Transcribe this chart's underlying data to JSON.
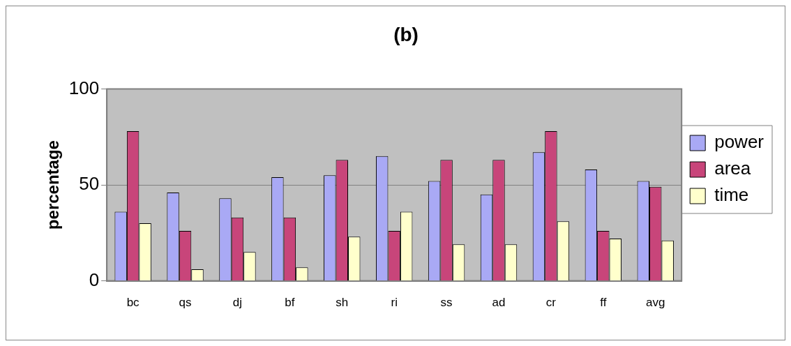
{
  "chart_data": {
    "type": "bar",
    "title": "(b)",
    "ylabel": "percentage",
    "categories": [
      "bc",
      "qs",
      "dj",
      "bf",
      "sh",
      "ri",
      "ss",
      "ad",
      "cr",
      "ff",
      "avg"
    ],
    "series": [
      {
        "name": "power",
        "color": "#a9a9f5",
        "values": [
          36,
          46,
          43,
          54,
          55,
          65,
          52,
          45,
          67,
          58,
          52
        ]
      },
      {
        "name": "area",
        "color": "#c8457a",
        "values": [
          78,
          26,
          33,
          33,
          63,
          26,
          63,
          63,
          78,
          26,
          49
        ]
      },
      {
        "name": "time",
        "color": "#ffffcc",
        "values": [
          30,
          6,
          15,
          7,
          23,
          36,
          19,
          19,
          31,
          22,
          21
        ]
      }
    ],
    "ylim": [
      0,
      100
    ],
    "yticks": [
      0,
      50,
      100
    ],
    "grid": "y",
    "legend": "right"
  }
}
